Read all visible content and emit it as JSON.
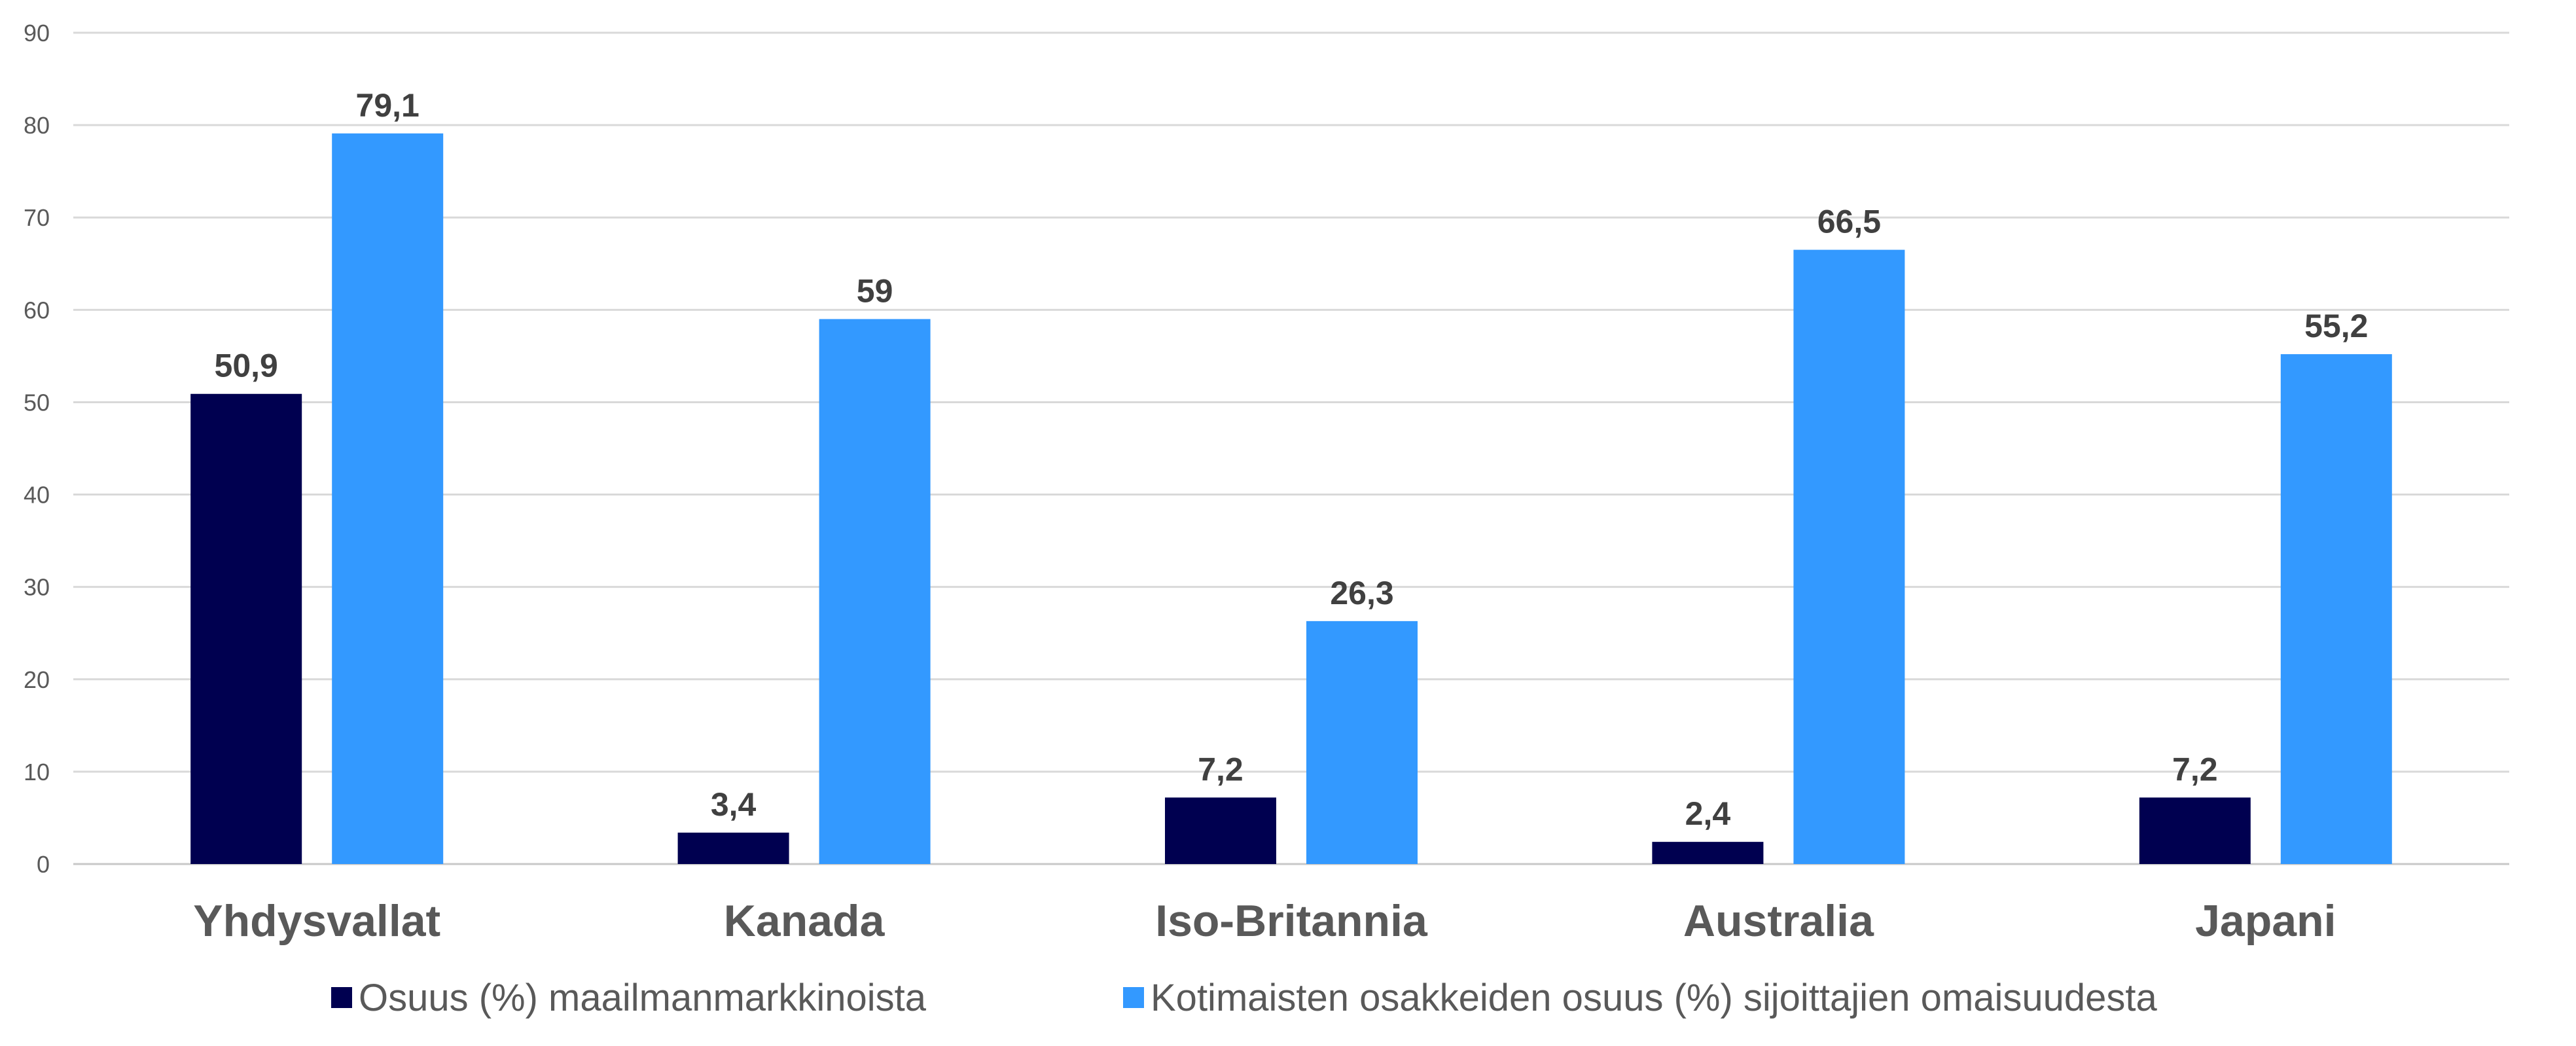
{
  "chart_data": {
    "type": "bar",
    "categories": [
      "Yhdysvallat",
      "Kanada",
      "Iso-Britannia",
      "Australia",
      "Japani"
    ],
    "series": [
      {
        "name": "Osuus (%) maailmanmarkkinoista",
        "color": "#000050",
        "values": [
          50.9,
          3.4,
          7.2,
          2.4,
          7.2
        ],
        "labels": [
          "50,9",
          "3,4",
          "7,2",
          "2,4",
          "7,2"
        ]
      },
      {
        "name": "Kotimaisten osakkeiden osuus (%) sijoittajien omaisuudesta",
        "color": "#3399ff",
        "values": [
          79.1,
          59,
          26.3,
          66.5,
          55.2
        ],
        "labels": [
          "79,1",
          "59",
          "26,3",
          "66,5",
          "55,2"
        ]
      }
    ],
    "ylim": [
      0,
      90
    ],
    "yticks": [
      0,
      10,
      20,
      30,
      40,
      50,
      60,
      70,
      80,
      90
    ],
    "grid": true,
    "legend_position": "bottom",
    "title": "",
    "xlabel": "",
    "ylabel": ""
  }
}
